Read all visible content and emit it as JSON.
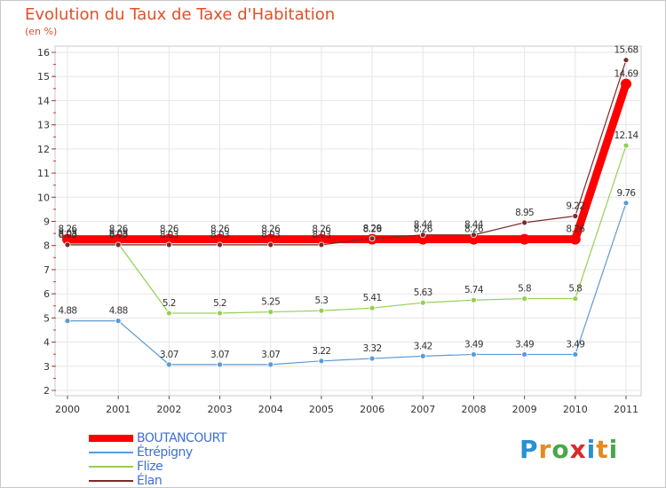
{
  "title": "Evolution du Taux de Taxe d'Habitation",
  "subtitle": "(en %)",
  "logo": {
    "text": "Proxiti",
    "colors": [
      "#2a8fd4",
      "#e58a1f",
      "#47a84a",
      "#d62b2b",
      "#2a8fd4",
      "#e58a1f",
      "#47a84a"
    ]
  },
  "chart_data": {
    "type": "line",
    "title": "Evolution du Taux de Taxe d'Habitation",
    "ylabel": "(en %)",
    "xlabel": "",
    "x": [
      "2000",
      "2001",
      "2002",
      "2003",
      "2004",
      "2005",
      "2006",
      "2007",
      "2008",
      "2009",
      "2010",
      "2011"
    ],
    "ylim": [
      2,
      16
    ],
    "yticks": [
      "2",
      "3",
      "4",
      "5",
      "6",
      "7",
      "8",
      "9",
      "10",
      "11",
      "12",
      "13",
      "14",
      "15",
      "16"
    ],
    "grid": true,
    "legend_position": "bottom-left",
    "series": [
      {
        "name": "BOUTANCOURT",
        "color": "#ff0000",
        "values": [
          8.26,
          8.26,
          8.26,
          8.26,
          8.26,
          8.26,
          8.26,
          8.26,
          8.26,
          8.26,
          8.26,
          14.69
        ],
        "labels": [
          "8.26",
          "8.26",
          "8.26",
          "8.26",
          "8.26",
          "8.26",
          "8.26",
          "8.26",
          "8.26",
          "",
          "8.26",
          "14.69"
        ]
      },
      {
        "name": "Étrépigny",
        "color": "#5b9bd5",
        "values": [
          4.88,
          4.88,
          3.07,
          3.07,
          3.07,
          3.22,
          3.32,
          3.42,
          3.49,
          3.49,
          3.49,
          9.76
        ],
        "labels": [
          "4.88",
          "4.88",
          "3.07",
          "3.07",
          "3.07",
          "3.22",
          "3.32",
          "3.42",
          "3.49",
          "3.49",
          "3.49",
          "9.76"
        ]
      },
      {
        "name": "Flize",
        "color": "#92d050",
        "values": [
          8.08,
          8.08,
          5.2,
          5.2,
          5.25,
          5.3,
          5.41,
          5.63,
          5.74,
          5.8,
          5.8,
          12.14
        ],
        "labels": [
          "8.08",
          "8.08",
          "5.2",
          "5.2",
          "5.25",
          "5.3",
          "5.41",
          "5.63",
          "5.74",
          "5.8",
          "5.8",
          "12.14"
        ]
      },
      {
        "name": "Élan",
        "color": "#7b2a2a",
        "values": [
          8.03,
          8.03,
          8.03,
          8.03,
          8.03,
          8.03,
          8.29,
          8.44,
          8.44,
          8.95,
          9.22,
          15.68
        ],
        "labels": [
          "8.03",
          "8.03",
          "8.03",
          "8.03",
          "8.03",
          "8.03",
          "8.29",
          "8.44",
          "8.44",
          "8.95",
          "9.22",
          "15.68"
        ]
      }
    ]
  }
}
